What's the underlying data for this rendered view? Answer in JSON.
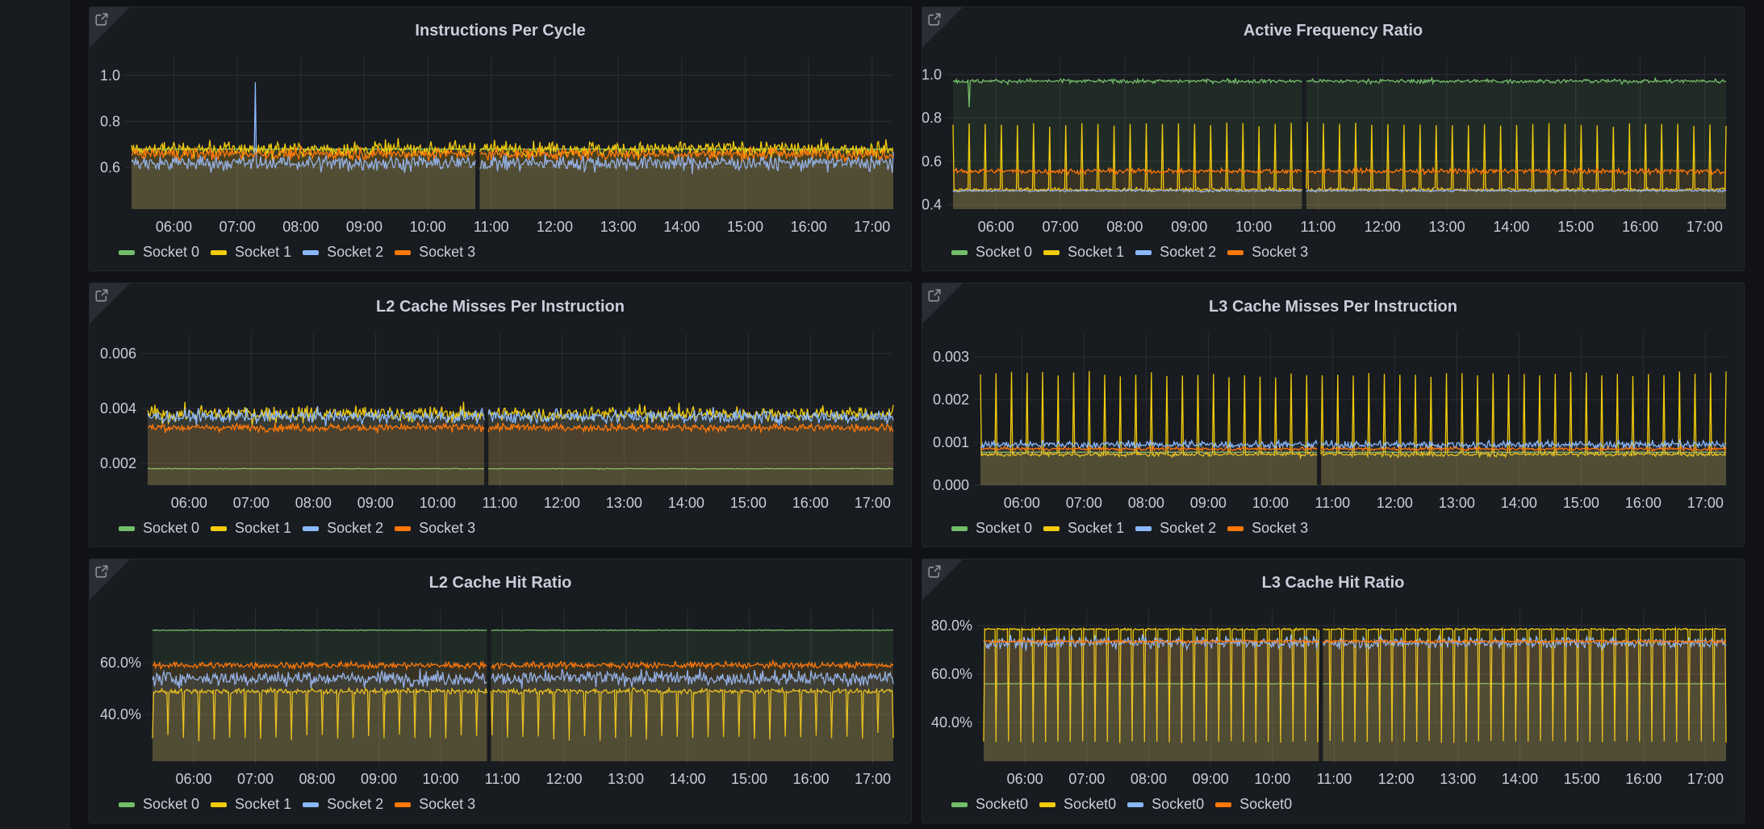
{
  "colors": {
    "socket0": "#73bf69",
    "socket1": "#f2cc0c",
    "socket2": "#8ab8ff",
    "socket3": "#ff780a",
    "panel_bg": "#181b1f",
    "page_bg": "#111217",
    "grid": "#2c2f35",
    "axis_text": "#ccccdc"
  },
  "x_ticks": [
    "06:00",
    "07:00",
    "08:00",
    "09:00",
    "10:00",
    "11:00",
    "12:00",
    "13:00",
    "14:00",
    "15:00",
    "16:00",
    "17:00"
  ],
  "chart_data": [
    {
      "id": "ipc",
      "type": "line",
      "title": "Instructions Per Cycle",
      "xlabel": "",
      "ylabel": "",
      "x_range": [
        "05:20",
        "17:20"
      ],
      "ylim": [
        0.42,
        1.05
      ],
      "y_ticks": [
        0.6,
        0.8,
        1.0
      ],
      "y_tick_labels": [
        "0.6",
        "0.8",
        "1.0"
      ],
      "grid": true,
      "gap_at": "10:47",
      "legend": "bottom-left",
      "series": [
        {
          "name": "Socket 0",
          "color_key": "socket0",
          "mean": 0.68,
          "noise": 0.004,
          "spike_every_min": 0,
          "spike_value": 0
        },
        {
          "name": "Socket 1",
          "color_key": "socket1",
          "mean": 0.68,
          "noise": 0.07,
          "spike_every_min": 0,
          "spike_value": 0
        },
        {
          "name": "Socket 2",
          "color_key": "socket2",
          "mean": 0.62,
          "noise": 0.07,
          "spike_every_min": 0,
          "spike_value": 0,
          "peak": {
            "time": "07:17",
            "value": 0.97
          }
        },
        {
          "name": "Socket 3",
          "color_key": "socket3",
          "mean": 0.66,
          "noise": 0.05,
          "spike_every_min": 0,
          "spike_value": 0
        }
      ]
    },
    {
      "id": "freq",
      "type": "line",
      "title": "Active Frequency Ratio",
      "xlabel": "",
      "ylabel": "",
      "x_range": [
        "05:20",
        "17:20"
      ],
      "ylim": [
        0.38,
        1.05
      ],
      "y_ticks": [
        0.4,
        0.6,
        0.8,
        1.0
      ],
      "y_tick_labels": [
        "0.4",
        "0.6",
        "0.8",
        "1.0"
      ],
      "grid": true,
      "gap_at": "10:47",
      "legend": "bottom-left",
      "series": [
        {
          "name": "Socket 0",
          "color_key": "socket0",
          "mean": 0.97,
          "noise": 0.02,
          "spike_every_min": 0,
          "spike_value": 0,
          "dip": {
            "time": "05:35",
            "value": 0.85
          }
        },
        {
          "name": "Socket 1",
          "color_key": "socket1",
          "mean": 0.47,
          "noise": 0.015,
          "spike_every_min": 15,
          "spike_value": 0.77
        },
        {
          "name": "Socket 2",
          "color_key": "socket2",
          "mean": 0.465,
          "noise": 0.012,
          "spike_every_min": 0,
          "spike_value": 0
        },
        {
          "name": "Socket 3",
          "color_key": "socket3",
          "mean": 0.555,
          "noise": 0.025,
          "spike_every_min": 0,
          "spike_value": 0
        }
      ]
    },
    {
      "id": "l2mpi",
      "type": "line",
      "title": "L2 Cache Misses Per Instruction",
      "xlabel": "",
      "ylabel": "",
      "x_range": [
        "05:20",
        "17:20"
      ],
      "ylim": [
        0.0012,
        0.0065
      ],
      "y_ticks": [
        0.002,
        0.004,
        0.006
      ],
      "y_tick_labels": [
        "0.002",
        "0.004",
        "0.006"
      ],
      "grid": true,
      "gap_at": "10:47",
      "legend": "bottom-left",
      "series": [
        {
          "name": "Socket 0",
          "color_key": "socket0",
          "mean": 0.0018,
          "noise": 3e-05,
          "spike_every_min": 0,
          "spike_value": 0
        },
        {
          "name": "Socket 1",
          "color_key": "socket1",
          "mean": 0.0038,
          "noise": 0.0006,
          "spike_every_min": 0,
          "spike_value": 0
        },
        {
          "name": "Socket 2",
          "color_key": "socket2",
          "mean": 0.0037,
          "noise": 0.0005,
          "spike_every_min": 0,
          "spike_value": 0
        },
        {
          "name": "Socket 3",
          "color_key": "socket3",
          "mean": 0.0033,
          "noise": 0.0003,
          "spike_every_min": 0,
          "spike_value": 0
        }
      ]
    },
    {
      "id": "l3mpi",
      "type": "line",
      "title": "L3 Cache Misses Per Instruction",
      "xlabel": "",
      "ylabel": "",
      "x_range": [
        "05:20",
        "17:20"
      ],
      "ylim": [
        0.0,
        0.0034
      ],
      "y_ticks": [
        0.0,
        0.001,
        0.002,
        0.003
      ],
      "y_tick_labels": [
        "0.000",
        "0.001",
        "0.002",
        "0.003"
      ],
      "grid": true,
      "gap_at": "10:47",
      "legend": "bottom-left",
      "series": [
        {
          "name": "Socket 0",
          "color_key": "socket0",
          "mean": 0.00077,
          "noise": 2e-05,
          "spike_every_min": 0,
          "spike_value": 0
        },
        {
          "name": "Socket 1",
          "color_key": "socket1",
          "mean": 0.00072,
          "noise": 0.0001,
          "spike_every_min": 15,
          "spike_value": 0.0026
        },
        {
          "name": "Socket 2",
          "color_key": "socket2",
          "mean": 0.00095,
          "noise": 0.00018,
          "spike_every_min": 0,
          "spike_value": 0
        },
        {
          "name": "Socket 3",
          "color_key": "socket3",
          "mean": 0.00085,
          "noise": 8e-05,
          "spike_every_min": 0,
          "spike_value": 0
        }
      ]
    },
    {
      "id": "l2hit",
      "type": "line",
      "title": "L2 Cache Hit Ratio",
      "xlabel": "",
      "ylabel": "",
      "x_range": [
        "05:20",
        "17:20"
      ],
      "ylim": [
        0.22,
        0.78
      ],
      "y_ticks": [
        0.4,
        0.6
      ],
      "y_tick_labels": [
        "40.0%",
        "60.0%"
      ],
      "grid": true,
      "gap_at": "10:47",
      "legend": "bottom-left",
      "series": [
        {
          "name": "Socket 0",
          "color_key": "socket0",
          "mean": 0.725,
          "noise": 0.003,
          "spike_every_min": 0,
          "spike_value": 0
        },
        {
          "name": "Socket 1",
          "color_key": "socket1",
          "mean": 0.49,
          "noise": 0.02,
          "spike_every_min": 15,
          "spike_value": 0.31
        },
        {
          "name": "Socket 2",
          "color_key": "socket2",
          "mean": 0.54,
          "noise": 0.06,
          "spike_every_min": 0,
          "spike_value": 0
        },
        {
          "name": "Socket 3",
          "color_key": "socket3",
          "mean": 0.59,
          "noise": 0.025,
          "spike_every_min": 0,
          "spike_value": 0
        }
      ]
    },
    {
      "id": "l3hit",
      "type": "line",
      "title": "L3 Cache Hit Ratio",
      "xlabel": "",
      "ylabel": "",
      "x_range": [
        "05:20",
        "17:20"
      ],
      "ylim": [
        0.24,
        0.84
      ],
      "y_ticks": [
        0.4,
        0.6,
        0.8
      ],
      "y_tick_labels": [
        "40.0%",
        "60.0%",
        "80.0%"
      ],
      "grid": true,
      "gap_at": "10:47",
      "legend": "bottom-left",
      "series": [
        {
          "name": "Socket0",
          "color_key": "socket0",
          "mean": 0.56,
          "noise": 0.003,
          "spike_every_min": 0,
          "spike_value": 0
        },
        {
          "name": "Socket0",
          "color_key": "socket1",
          "mean": 0.785,
          "noise": 0.008,
          "spike_every_min": 12,
          "spike_value": 0.32
        },
        {
          "name": "Socket0",
          "color_key": "socket2",
          "mean": 0.73,
          "noise": 0.05,
          "spike_every_min": 0,
          "spike_value": 0
        },
        {
          "name": "Socket0",
          "color_key": "socket3",
          "mean": 0.735,
          "noise": 0.012,
          "spike_every_min": 0,
          "spike_value": 0
        }
      ]
    }
  ]
}
